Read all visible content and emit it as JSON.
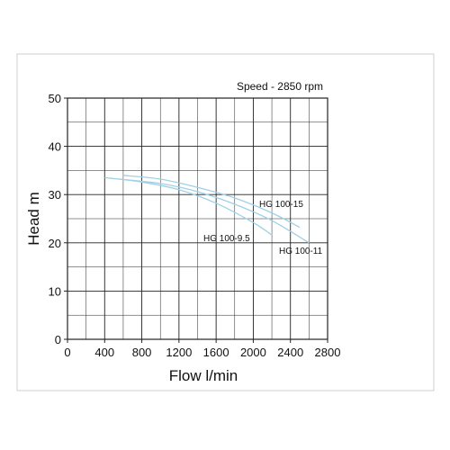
{
  "chart_data": {
    "type": "line",
    "title": "Speed - 2850 rpm",
    "xlabel": "Flow l/min",
    "ylabel": "Head m",
    "xlim": [
      0,
      2800
    ],
    "ylim": [
      0,
      50
    ],
    "xticks": [
      0,
      400,
      800,
      1200,
      1600,
      2000,
      2400,
      2800
    ],
    "yticks": [
      0,
      10,
      20,
      30,
      40,
      50
    ],
    "grid": true,
    "colors": {
      "curve": "#9fd0e6",
      "frame": "#222222",
      "grid": "#222222"
    },
    "series": [
      {
        "name": "HG 100-15",
        "x": [
          600,
          1000,
          1400,
          1800,
          2200,
          2500
        ],
        "y": [
          34,
          33.2,
          31.5,
          29.3,
          26.2,
          23.2
        ]
      },
      {
        "name": "HG 100-11",
        "x": [
          550,
          1000,
          1400,
          1800,
          2200,
          2600
        ],
        "y": [
          33.2,
          32.3,
          30.6,
          28.0,
          24.6,
          20.0
        ]
      },
      {
        "name": "HG 100-9.5",
        "x": [
          400,
          800,
          1200,
          1600,
          2000,
          2200
        ],
        "y": [
          33.5,
          32.6,
          31.0,
          28.2,
          24.2,
          21.6
        ]
      }
    ]
  }
}
